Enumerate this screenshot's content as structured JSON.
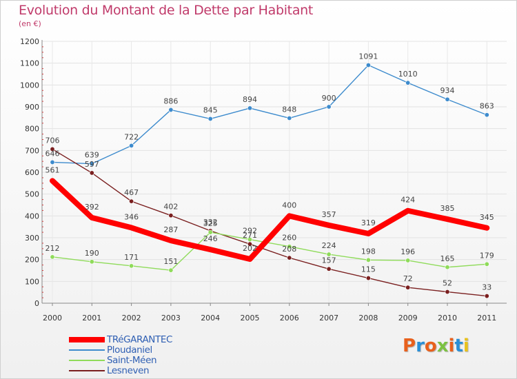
{
  "title": "Evolution du Montant de la Dette par Habitant",
  "subtitle": "(en €)",
  "logo": {
    "text": "Proxiti",
    "letters": [
      "P",
      "r",
      "o",
      "x",
      "i",
      "t",
      "i"
    ],
    "colors": [
      "#e8601c",
      "#2a8fd6",
      "#e8601c",
      "#7cc242",
      "#e8601c",
      "#2a8fd6",
      "#e8c21c"
    ]
  },
  "chart_data": {
    "type": "line",
    "title": "Evolution du Montant de la Dette par Habitant",
    "subtitle": "(en €)",
    "x": [
      "2000",
      "2001",
      "2002",
      "2003",
      "2004",
      "2005",
      "2006",
      "2007",
      "2008",
      "2009",
      "2010",
      "2011"
    ],
    "ylim": [
      0,
      1200
    ],
    "yticks": [
      0,
      100,
      200,
      300,
      400,
      500,
      600,
      700,
      800,
      900,
      1000,
      1100,
      1200
    ],
    "grid": true,
    "legend": "bottom-left",
    "series": [
      {
        "name": "TRéGARANTEC",
        "color": "#ff0000",
        "values": [
          561,
          392,
          346,
          287,
          246,
          202,
          400,
          357,
          319,
          424,
          385,
          345
        ]
      },
      {
        "name": "Ploudaniel",
        "color": "#3d8bcd",
        "values": [
          646,
          639,
          722,
          886,
          845,
          894,
          848,
          900,
          1091,
          1010,
          934,
          863
        ]
      },
      {
        "name": "Saint-Méen",
        "color": "#8fdb5a",
        "values": [
          212,
          190,
          171,
          151,
          325,
          292,
          260,
          224,
          198,
          196,
          165,
          179
        ]
      },
      {
        "name": "Lesneven",
        "color": "#7a1f1f",
        "values": [
          706,
          597,
          467,
          402,
          332,
          271,
          208,
          157,
          115,
          72,
          52,
          33
        ]
      }
    ],
    "data_labels": {
      "TRéGARANTEC": [
        "561",
        "392",
        "346",
        "287",
        "246",
        "202",
        "400",
        "357",
        "319",
        "424",
        "385",
        "345"
      ],
      "Ploudaniel": [
        "646",
        "639",
        "722",
        "886",
        "845",
        "894",
        "848",
        "900",
        "1091",
        "1010",
        "934",
        "863"
      ],
      "Saint-Méen": [
        "212",
        "190",
        "171",
        "151",
        "325",
        "292",
        "260",
        "224",
        "198",
        "196",
        "165",
        "179"
      ],
      "Lesneven": [
        "706",
        "597",
        "467",
        "402",
        "332",
        "271",
        "208",
        "157",
        "115",
        "72",
        "52",
        "33"
      ]
    }
  }
}
